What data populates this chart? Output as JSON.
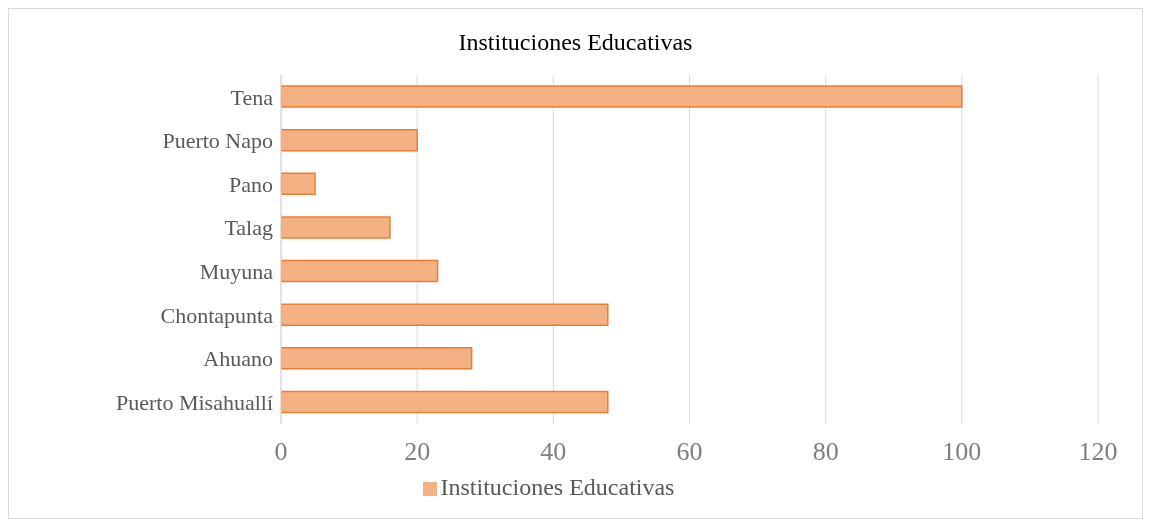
{
  "chart_data": {
    "type": "bar",
    "orientation": "horizontal",
    "title": "Instituciones Educativas",
    "categories": [
      "Tena",
      "Puerto Napo",
      "Pano",
      "Talag",
      "Muyuna",
      "Chontapunta",
      "Ahuano",
      "Puerto Misahuallí"
    ],
    "series": [
      {
        "name": "Instituciones Educativas",
        "color": "#f4b183",
        "values": [
          100,
          20,
          5,
          16,
          23,
          48,
          28,
          48
        ]
      }
    ],
    "xlim": [
      0,
      120
    ],
    "xticks": [
      0,
      20,
      40,
      60,
      80,
      100,
      120
    ],
    "grid": "x",
    "legend": "bottom"
  }
}
